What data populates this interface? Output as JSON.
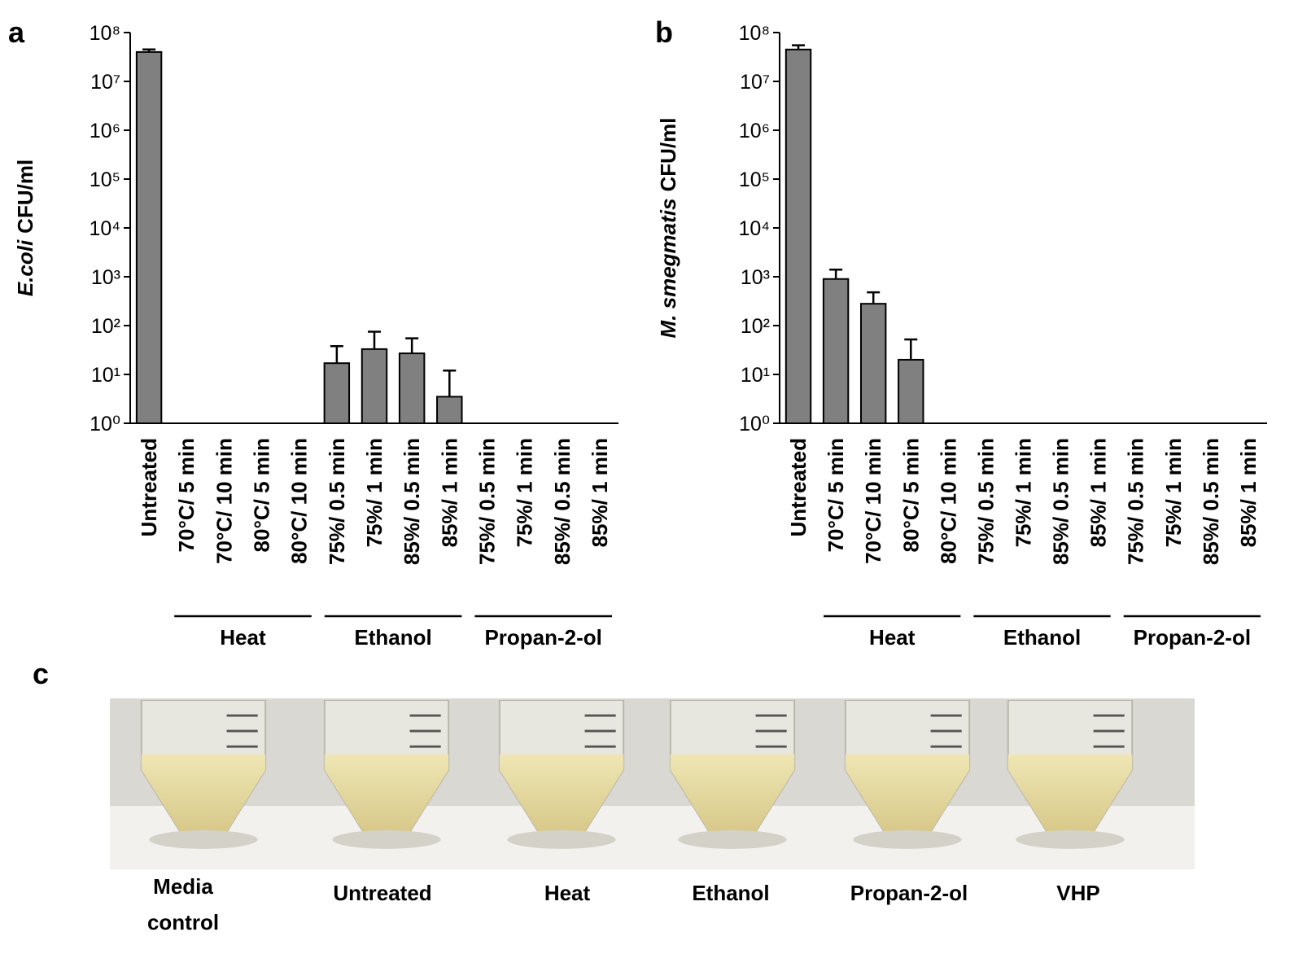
{
  "chart_data": [
    {
      "type": "bar",
      "panel_label": "a",
      "ylabel": {
        "species": "E.coli",
        "unit": "CFU/ml"
      },
      "yscale": "log",
      "color": "#808080",
      "categories": [
        "Untreated",
        "70°C/ 5 min",
        "70°C/ 10 min",
        "80°C/ 5 min",
        "80°C/ 10 min",
        "75%/ 0.5 min",
        "75%/ 1 min",
        "85%/ 0.5 min",
        "85%/ 1 min",
        "75%/ 0.5 min",
        "75%/ 1 min",
        "85%/ 0.5 min",
        "85%/ 1 min"
      ],
      "values": [
        40000000,
        null,
        null,
        null,
        null,
        17,
        33,
        27,
        3.5,
        null,
        null,
        null,
        null
      ],
      "errors": [
        5000000,
        null,
        null,
        null,
        null,
        21,
        42,
        28,
        8.5,
        null,
        null,
        null,
        null
      ],
      "groups": [
        "Heat",
        "Ethanol",
        "Propan-2-ol"
      ],
      "ylim": [
        1,
        100000000
      ],
      "yticks": [
        {
          "value": 1,
          "label": "10⁰"
        },
        {
          "value": 10,
          "label": "10¹"
        },
        {
          "value": 100,
          "label": "10²"
        },
        {
          "value": 1000,
          "label": "10³"
        },
        {
          "value": 10000,
          "label": "10⁴"
        },
        {
          "value": 100000,
          "label": "10⁵"
        },
        {
          "value": 1000000,
          "label": "10⁶"
        },
        {
          "value": 10000000,
          "label": "10⁷"
        },
        {
          "value": 100000000,
          "label": "10⁸"
        }
      ]
    },
    {
      "type": "bar",
      "panel_label": "b",
      "ylabel": {
        "species": "M. smegmatis",
        "unit": "CFU/ml"
      },
      "yscale": "log",
      "color": "#808080",
      "categories": [
        "Untreated",
        "70°C/ 5 min",
        "70°C/ 10 min",
        "80°C/ 5 min",
        "80°C/ 10 min",
        "75%/ 0.5 min",
        "75%/ 1 min",
        "85%/ 0.5 min",
        "85%/ 1 min",
        "75%/ 0.5 min",
        "75%/ 1 min",
        "85%/ 0.5 min",
        "85%/ 1 min"
      ],
      "values": [
        45000000,
        900,
        280,
        20,
        null,
        null,
        null,
        null,
        null,
        null,
        null,
        null,
        null
      ],
      "errors": [
        10000000,
        500,
        200,
        32,
        null,
        null,
        null,
        null,
        null,
        null,
        null,
        null,
        null
      ],
      "groups": [
        "Heat",
        "Ethanol",
        "Propan-2-ol"
      ],
      "ylim": [
        1,
        100000000
      ],
      "yticks": [
        {
          "value": 1,
          "label": "10⁰"
        },
        {
          "value": 10,
          "label": "10¹"
        },
        {
          "value": 100,
          "label": "10²"
        },
        {
          "value": 1000,
          "label": "10³"
        },
        {
          "value": 10000,
          "label": "10⁴"
        },
        {
          "value": 100000,
          "label": "10⁵"
        },
        {
          "value": 1000000,
          "label": "10⁶"
        },
        {
          "value": 10000000,
          "label": "10⁷"
        },
        {
          "value": 100000000,
          "label": "10⁸"
        }
      ]
    }
  ],
  "photo": {
    "panel_label": "c",
    "labels": [
      "Media control",
      "Untreated",
      "Heat",
      "Ethanol",
      "Propan-2-ol",
      "VHP"
    ]
  }
}
